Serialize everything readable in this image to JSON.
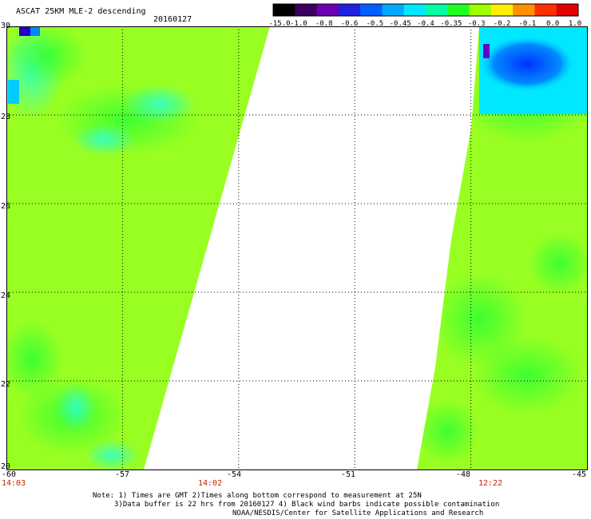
{
  "header": {
    "title": "ASCAT 25KM MLE-2 descending",
    "date": "20160127"
  },
  "colorbar": {
    "labels": [
      "-15.0",
      "-1.0",
      "-0.8",
      "-0.6",
      "-0.5",
      "-0.45",
      "-0.4",
      "-0.35",
      "-0.3",
      "-0.2",
      "-0.1",
      "0.0",
      "1.0"
    ],
    "colors": [
      "#000000",
      "#3a0060",
      "#6a00b0",
      "#2020e0",
      "#0060ff",
      "#00a8ff",
      "#00e8ff",
      "#00ffa0",
      "#20ff20",
      "#a0ff00",
      "#ffee00",
      "#ff9000",
      "#ff3000",
      "#e00000"
    ]
  },
  "axes": {
    "lat_labels": [
      "30",
      "28",
      "26",
      "24",
      "22",
      "20"
    ],
    "lon_labels": [
      "-60",
      "-57",
      "-54",
      "-51",
      "-48",
      "-45"
    ],
    "lat_range": [
      20,
      30
    ],
    "lon_range": [
      -60,
      -45
    ],
    "grid": true
  },
  "pass_times": [
    {
      "label": "14:03",
      "lon": -60
    },
    {
      "label": "14:02",
      "lon": -54
    },
    {
      "label": "12:22",
      "lon": -48
    }
  ],
  "notes": {
    "line1": "Note: 1) Times are GMT 2)Times along bottom correspond to measurement at 25N",
    "line2": "3)Data buffer is 22 hrs from 20160127 4) Black wind barbs indicate possible contamination",
    "line3": "NOAA/NESDIS/Center for Satellite Applications and Research"
  }
}
